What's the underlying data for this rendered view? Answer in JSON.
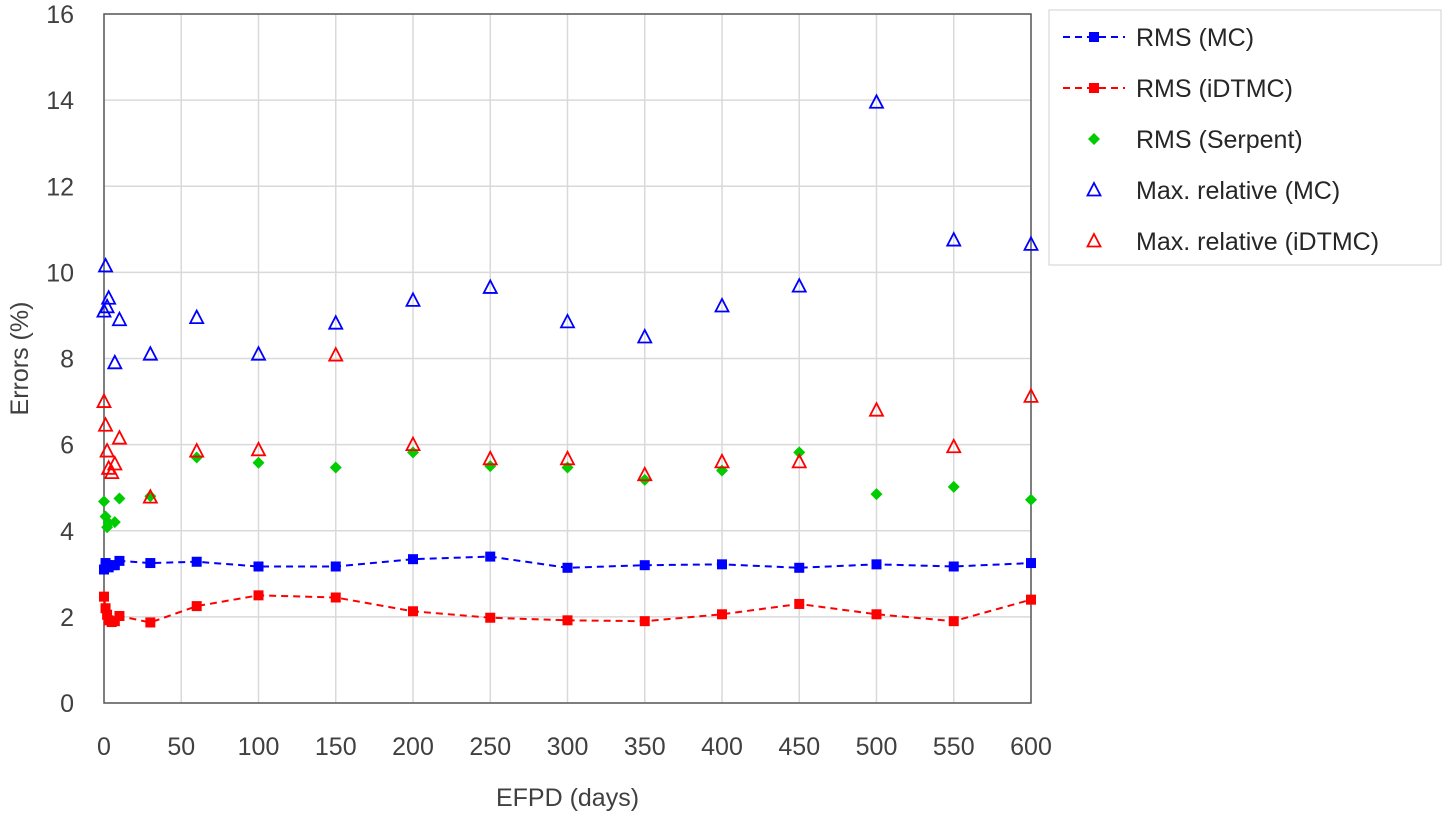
{
  "chart_data": {
    "type": "scatter",
    "title": "",
    "xlabel": "EFPD (days)",
    "ylabel": "Errors (%)",
    "xlim": [
      0,
      600
    ],
    "ylim": [
      0,
      16
    ],
    "xticks": [
      0,
      50,
      100,
      150,
      200,
      250,
      300,
      350,
      400,
      450,
      500,
      550,
      600
    ],
    "yticks": [
      0,
      2,
      4,
      6,
      8,
      10,
      12,
      14,
      16
    ],
    "grid": true,
    "legend_position": "right",
    "series": [
      {
        "name": "RMS (MC)",
        "color": "#0000ff",
        "marker": "square",
        "line": "dashed",
        "x": [
          0,
          1,
          2,
          3,
          5,
          7,
          10,
          30,
          60,
          100,
          150,
          200,
          250,
          300,
          350,
          400,
          450,
          500,
          550,
          600
        ],
        "y": [
          3.1,
          3.25,
          3.2,
          3.15,
          3.2,
          3.2,
          3.3,
          3.25,
          3.28,
          3.17,
          3.17,
          3.34,
          3.4,
          3.14,
          3.2,
          3.22,
          3.14,
          3.22,
          3.17,
          3.25
        ]
      },
      {
        "name": "RMS (iDTMC)",
        "color": "#ff0000",
        "marker": "square",
        "line": "dashed",
        "x": [
          0,
          1,
          2,
          3,
          5,
          7,
          10,
          30,
          60,
          100,
          150,
          200,
          250,
          300,
          350,
          400,
          450,
          500,
          550,
          600
        ],
        "y": [
          2.47,
          2.2,
          2.05,
          1.92,
          1.88,
          1.9,
          2.02,
          1.87,
          2.25,
          2.5,
          2.45,
          2.13,
          1.98,
          1.92,
          1.9,
          2.06,
          2.3,
          2.06,
          1.9,
          2.4
        ]
      },
      {
        "name": "RMS (Serpent)",
        "color": "#00cc00",
        "marker": "diamond",
        "line": "none",
        "x": [
          0,
          1,
          2,
          3,
          7,
          10,
          30,
          60,
          100,
          150,
          200,
          250,
          300,
          350,
          400,
          450,
          500,
          550,
          600
        ],
        "y": [
          4.68,
          4.33,
          4.08,
          4.18,
          4.2,
          4.75,
          4.8,
          5.7,
          5.58,
          5.47,
          5.82,
          5.5,
          5.47,
          5.18,
          5.4,
          5.82,
          4.85,
          5.02,
          4.72
        ]
      },
      {
        "name": "Max. relative (MC)",
        "color": "#0000ff",
        "marker": "triangle",
        "line": "none",
        "x": [
          0,
          1,
          2,
          3,
          7,
          10,
          30,
          60,
          100,
          150,
          200,
          250,
          300,
          350,
          400,
          450,
          500,
          550,
          600
        ],
        "y": [
          9.1,
          10.15,
          9.2,
          9.4,
          7.9,
          8.9,
          8.1,
          8.95,
          8.1,
          8.82,
          9.35,
          9.65,
          8.85,
          8.5,
          9.22,
          9.68,
          13.95,
          10.75,
          10.65
        ]
      },
      {
        "name": "Max. relative (iDTMC)",
        "color": "#ff0000",
        "marker": "triangle",
        "line": "none",
        "x": [
          0,
          1,
          2,
          3,
          5,
          7,
          10,
          30,
          60,
          100,
          150,
          200,
          250,
          300,
          350,
          400,
          450,
          500,
          550,
          600
        ],
        "y": [
          7.0,
          6.45,
          5.85,
          5.45,
          5.35,
          5.55,
          6.15,
          4.78,
          5.85,
          5.88,
          8.08,
          6.0,
          5.67,
          5.67,
          5.3,
          5.6,
          5.6,
          6.8,
          5.95,
          7.12
        ]
      }
    ]
  }
}
